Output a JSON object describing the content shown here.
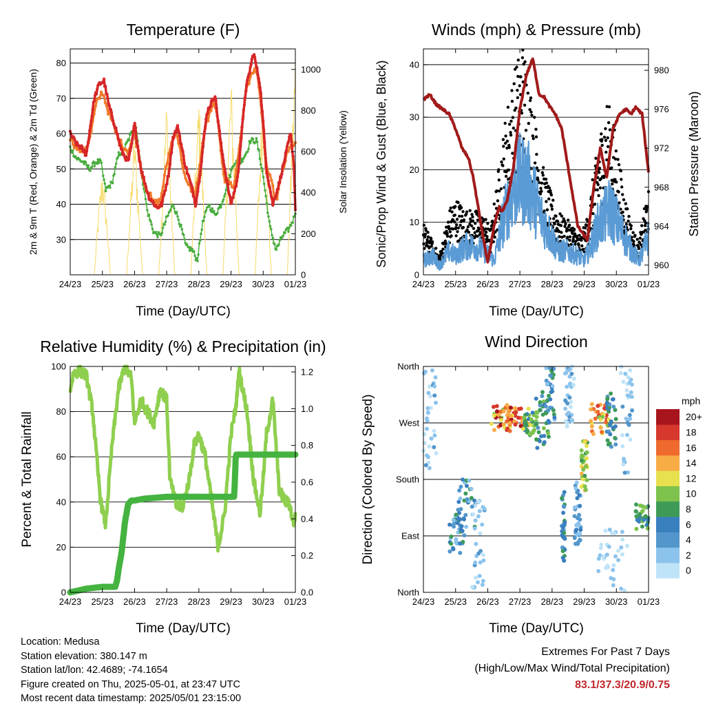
{
  "x_ticks": [
    "24/23",
    "25/23",
    "26/23",
    "27/23",
    "28/23",
    "29/23",
    "30/23",
    "01/23"
  ],
  "xlabel": "Time (Day/UTC)",
  "colors": {
    "temp2m": "#d62728",
    "temp9m": "#f07a2a",
    "dew": "#4aad3f",
    "solar": "#f6dd72",
    "wind": "#5b9bd5",
    "gust": "#000000",
    "pressure": "#a11a1a",
    "rh": "#8fcf4f",
    "rain": "#44b340",
    "extremes": "#c1272d"
  },
  "panels": {
    "temperature": {
      "title": "Temperature (F)",
      "ylabel_left": "2m & 9m T (Red, Orange) & 2m Td (Green)",
      "ylabel_right": "Solar Insolation (Yellow)",
      "left_ticks": [
        "30",
        "40",
        "50",
        "60",
        "70",
        "80"
      ],
      "right_ticks": [
        "0",
        "200",
        "400",
        "600",
        "800",
        "1000"
      ]
    },
    "winds": {
      "title": "Winds (mph) & Pressure (mb)",
      "ylabel_left": "Sonic/Prop Wind & Gust (Blue, Black)",
      "ylabel_right": "Station Pressure (Maroon)",
      "left_ticks": [
        "0",
        "10",
        "20",
        "30",
        "40"
      ],
      "right_ticks": [
        "960",
        "964",
        "968",
        "972",
        "976",
        "980"
      ]
    },
    "humidity": {
      "title": "Relative Humidity (%) & Precipitation (in)",
      "ylabel_left": "Percent & Total Rainfall",
      "left_ticks": [
        "0",
        "20",
        "40",
        "60",
        "80",
        "100"
      ],
      "right_ticks": [
        "0.0",
        "0.2",
        "0.4",
        "0.6",
        "0.8",
        "1.0",
        "1.2"
      ]
    },
    "direction": {
      "title": "Wind Direction",
      "ylabel": "Direction (Colored By Speed)",
      "dir_ticks": [
        "North",
        "East",
        "South",
        "West",
        "North"
      ],
      "legend_title": "mph",
      "legend_labels": [
        "0",
        "2",
        "4",
        "6",
        "8",
        "10",
        "12",
        "14",
        "16",
        "18",
        "20+"
      ],
      "legend_colors": [
        "#bfe3f7",
        "#8cc3ec",
        "#5296cb",
        "#3a7fbe",
        "#3e9b57",
        "#7dc24c",
        "#e7e04f",
        "#f8ac45",
        "#ee6a2d",
        "#d6382e",
        "#a8151d"
      ]
    }
  },
  "chart_data": [
    {
      "type": "line",
      "id": "temperature",
      "title": "Temperature (F)",
      "x_unit": "days since 24/23 UTC",
      "xlim": [
        0,
        7
      ],
      "ylim": [
        20,
        84
      ],
      "y2lim": [
        0,
        1100
      ],
      "series": [
        {
          "name": "2m T",
          "color": "#d62728",
          "x": [
            0.0,
            0.2,
            0.35,
            0.5,
            0.75,
            0.9,
            1.05,
            1.2,
            1.4,
            1.6,
            1.8,
            1.9,
            2.0,
            2.2,
            2.45,
            2.7,
            2.85,
            3.05,
            3.2,
            3.35,
            3.55,
            3.8,
            3.9,
            4.0,
            4.25,
            4.5,
            4.7,
            4.9,
            5.0,
            5.2,
            5.45,
            5.7,
            5.9,
            6.0,
            6.1,
            6.3,
            6.5,
            6.7,
            6.85,
            6.95,
            7.0
          ],
          "y": [
            60,
            57,
            56,
            54,
            70,
            74,
            75,
            68,
            62,
            55,
            52,
            56,
            63,
            50,
            42,
            39,
            40,
            48,
            59,
            62,
            52,
            44,
            40,
            46,
            66,
            71,
            56,
            45,
            40,
            47,
            72,
            83,
            74,
            63,
            50,
            40,
            46,
            54,
            60,
            52,
            39
          ]
        },
        {
          "name": "9m T",
          "color": "#f07a2a",
          "x": [
            0.0,
            0.2,
            0.4,
            0.6,
            0.8,
            1.0,
            1.2,
            1.5,
            1.8,
            2.0,
            2.3,
            2.6,
            2.8,
            3.1,
            3.3,
            3.6,
            3.9,
            4.2,
            4.5,
            4.8,
            5.1,
            5.5,
            5.8,
            6.1,
            6.4,
            6.7,
            6.9
          ],
          "y": [
            59,
            56,
            55,
            58,
            68,
            72,
            66,
            58,
            55,
            60,
            46,
            40,
            41,
            56,
            61,
            46,
            43,
            62,
            69,
            47,
            45,
            74,
            79,
            51,
            41,
            53,
            57
          ]
        },
        {
          "name": "2m Td",
          "color": "#4aad3f",
          "x": [
            0.0,
            0.2,
            0.4,
            0.6,
            0.8,
            0.95,
            1.1,
            1.3,
            1.5,
            1.7,
            1.9,
            2.05,
            2.2,
            2.4,
            2.6,
            2.8,
            3.0,
            3.2,
            3.4,
            3.6,
            3.8,
            3.95,
            4.1,
            4.3,
            4.5,
            4.7,
            4.9,
            5.1,
            5.3,
            5.5,
            5.6,
            5.8,
            6.0,
            6.2,
            6.4,
            6.6,
            6.8,
            6.95,
            7.0
          ],
          "y": [
            56,
            53,
            52,
            50,
            52,
            52,
            44,
            46,
            54,
            56,
            60,
            62,
            50,
            38,
            32,
            31,
            36,
            40,
            35,
            28,
            27,
            24,
            34,
            40,
            37,
            40,
            46,
            52,
            52,
            55,
            58,
            58,
            48,
            34,
            27,
            31,
            33,
            36,
            38
          ]
        },
        {
          "name": "Solar Insolation",
          "axis": "right",
          "color": "#f6dd72",
          "x": [
            0.0,
            0.75,
            0.87,
            1.0,
            1.13,
            1.25,
            1.75,
            1.87,
            2.0,
            2.13,
            2.25,
            2.75,
            2.87,
            3.0,
            3.13,
            3.25,
            3.75,
            3.87,
            4.0,
            4.13,
            4.25,
            4.75,
            4.87,
            5.0,
            5.13,
            5.25,
            5.75,
            5.87,
            6.0,
            6.13,
            6.25,
            6.75,
            6.87,
            7.0
          ],
          "y": [
            0,
            0,
            300,
            520,
            300,
            0,
            0,
            350,
            700,
            350,
            0,
            0,
            420,
            860,
            420,
            0,
            0,
            430,
            870,
            430,
            0,
            0,
            470,
            950,
            470,
            0,
            0,
            470,
            940,
            470,
            0,
            0,
            560,
            1100
          ]
        }
      ]
    },
    {
      "type": "line",
      "id": "winds",
      "title": "Winds (mph) & Pressure (mb)",
      "x_unit": "days since 24/23 UTC",
      "xlim": [
        0,
        7
      ],
      "ylim": [
        0,
        43
      ],
      "y2lim": [
        959,
        982.2
      ],
      "series": [
        {
          "name": "Sonic/Prop Wind",
          "color": "#5b9bd5",
          "x": [
            0.0,
            0.3,
            0.5,
            0.8,
            1.0,
            1.3,
            1.6,
            1.9,
            2.2,
            2.5,
            2.8,
            3.0,
            3.2,
            3.4,
            3.6,
            3.9,
            4.2,
            4.5,
            4.8,
            5.0,
            5.2,
            5.4,
            5.6,
            5.8,
            6.1,
            6.4,
            6.7,
            6.9,
            7.0
          ],
          "y": [
            3,
            4,
            2,
            5,
            4,
            6,
            6,
            5,
            3,
            12,
            18,
            20,
            20,
            17,
            13,
            9,
            5,
            5,
            4,
            3,
            6,
            10,
            12,
            14,
            10,
            6,
            3,
            6,
            8
          ]
        },
        {
          "name": "Gust",
          "color": "#000000",
          "x": [
            0.0,
            0.2,
            0.5,
            0.8,
            1.0,
            1.3,
            1.6,
            1.9,
            2.1,
            2.3,
            2.6,
            2.9,
            3.1,
            3.3,
            3.5,
            3.7,
            4.0,
            4.3,
            4.6,
            4.9,
            5.1,
            5.3,
            5.5,
            5.7,
            5.9,
            6.2,
            6.5,
            6.7,
            6.9,
            7.0
          ],
          "y": [
            8,
            6,
            3,
            10,
            12,
            10,
            10,
            9,
            7,
            15,
            26,
            33,
            36,
            30,
            23,
            17,
            12,
            9,
            8,
            6,
            9,
            16,
            22,
            27,
            24,
            14,
            7,
            5,
            11,
            14
          ]
        },
        {
          "name": "Station Pressure",
          "axis": "right",
          "color": "#a11a1a",
          "x": [
            0.0,
            0.2,
            0.4,
            0.6,
            0.8,
            1.0,
            1.2,
            1.4,
            1.55,
            1.7,
            1.9,
            2.0,
            2.2,
            2.35,
            2.45,
            2.6,
            2.8,
            3.0,
            3.2,
            3.4,
            3.6,
            3.75,
            3.9,
            4.1,
            4.3,
            4.5,
            4.65,
            4.8,
            5.0,
            5.1,
            5.3,
            5.5,
            5.7,
            5.9,
            6.1,
            6.3,
            6.45,
            6.6,
            6.8,
            7.0
          ],
          "y": [
            977,
            977.5,
            976.5,
            976,
            975.5,
            974,
            972,
            971,
            969,
            966,
            962,
            960.3,
            964,
            966,
            965.5,
            966.5,
            970,
            976,
            979.5,
            981.2,
            977.5,
            977.3,
            976.4,
            975.5,
            974,
            970,
            967,
            964,
            963,
            962.6,
            968,
            972,
            969,
            974,
            975.5,
            976,
            975.5,
            976.2,
            975.5,
            969.5
          ]
        }
      ]
    },
    {
      "type": "line",
      "id": "humidity",
      "title": "Relative Humidity (%) & Precipitation (in)",
      "x_unit": "days since 24/23 UTC",
      "xlim": [
        0,
        7
      ],
      "ylim": [
        0,
        100
      ],
      "y2lim": [
        0,
        1.23
      ],
      "series": [
        {
          "name": "Relative Humidity",
          "color": "#8fcf4f",
          "x": [
            0.0,
            0.1,
            0.3,
            0.5,
            0.7,
            0.85,
            0.95,
            1.1,
            1.3,
            1.5,
            1.7,
            1.9,
            2.0,
            2.2,
            2.4,
            2.6,
            2.8,
            3.0,
            3.1,
            3.3,
            3.5,
            3.7,
            3.85,
            4.0,
            4.2,
            4.4,
            4.6,
            4.8,
            5.0,
            5.15,
            5.25,
            5.5,
            5.7,
            5.9,
            6.0,
            6.1,
            6.3,
            6.5,
            6.7,
            6.8,
            6.95,
            7.0
          ],
          "y": [
            90,
            97,
            98,
            96,
            80,
            55,
            40,
            30,
            65,
            90,
            100,
            95,
            75,
            85,
            80,
            75,
            90,
            85,
            50,
            38,
            38,
            50,
            65,
            70,
            60,
            40,
            20,
            35,
            70,
            82,
            98,
            80,
            50,
            35,
            50,
            70,
            85,
            45,
            40,
            40,
            30,
            35
          ]
        },
        {
          "name": "Total Precipitation",
          "axis": "right",
          "color": "#44b340",
          "x": [
            0.0,
            0.5,
            1.0,
            1.4,
            1.45,
            1.5,
            1.6,
            1.7,
            1.8,
            1.9,
            2.0,
            2.3,
            3.0,
            4.0,
            5.0,
            5.1,
            5.15,
            5.3,
            6.0,
            7.0
          ],
          "y": [
            0.0,
            0.02,
            0.03,
            0.03,
            0.06,
            0.12,
            0.22,
            0.38,
            0.48,
            0.5,
            0.5,
            0.51,
            0.52,
            0.52,
            0.52,
            0.52,
            0.75,
            0.75,
            0.75,
            0.75
          ]
        }
      ]
    },
    {
      "type": "scatter",
      "id": "direction",
      "title": "Wind Direction",
      "x_unit": "days since 24/23 UTC",
      "xlim": [
        0,
        7
      ],
      "ylim": [
        0,
        360
      ],
      "legend": "right",
      "colorscale": {
        "label": "mph",
        "levels": [
          0,
          2,
          4,
          6,
          8,
          10,
          12,
          14,
          16,
          18,
          20
        ]
      },
      "clusters": [
        {
          "x": [
            0.0,
            0.4
          ],
          "dir": [
            190,
            360
          ],
          "speed": [
            0,
            4
          ]
        },
        {
          "x": [
            0.8,
            1.3
          ],
          "dir": [
            60,
            120
          ],
          "speed": [
            2,
            8
          ]
        },
        {
          "x": [
            1.0,
            1.6
          ],
          "dir": [
            100,
            180
          ],
          "speed": [
            2,
            8
          ]
        },
        {
          "x": [
            1.5,
            1.9
          ],
          "dir": [
            0,
            150
          ],
          "speed": [
            0,
            4
          ]
        },
        {
          "x": [
            2.1,
            2.7
          ],
          "dir": [
            255,
            300
          ],
          "speed": [
            10,
            20
          ]
        },
        {
          "x": [
            2.6,
            3.3
          ],
          "dir": [
            265,
            295
          ],
          "speed": [
            12,
            20
          ]
        },
        {
          "x": [
            3.1,
            3.6
          ],
          "dir": [
            250,
            290
          ],
          "speed": [
            6,
            12
          ]
        },
        {
          "x": [
            3.5,
            3.9
          ],
          "dir": [
            230,
            320
          ],
          "speed": [
            4,
            10
          ]
        },
        {
          "x": [
            3.8,
            4.1
          ],
          "dir": [
            270,
            360
          ],
          "speed": [
            2,
            8
          ]
        },
        {
          "x": [
            4.4,
            4.7
          ],
          "dir": [
            260,
            360
          ],
          "speed": [
            0,
            4
          ]
        },
        {
          "x": [
            4.3,
            4.4
          ],
          "dir": [
            50,
            160
          ],
          "speed": [
            4,
            8
          ]
        },
        {
          "x": [
            4.7,
            4.9
          ],
          "dir": [
            70,
            180
          ],
          "speed": [
            2,
            6
          ]
        },
        {
          "x": [
            4.9,
            5.1
          ],
          "dir": [
            160,
            250
          ],
          "speed": [
            8,
            14
          ]
        },
        {
          "x": [
            5.2,
            5.8
          ],
          "dir": [
            250,
            300
          ],
          "speed": [
            10,
            18
          ]
        },
        {
          "x": [
            5.7,
            6.0
          ],
          "dir": [
            230,
            320
          ],
          "speed": [
            4,
            8
          ]
        },
        {
          "x": [
            6.1,
            6.5
          ],
          "dir": [
            190,
            360
          ],
          "speed": [
            0,
            4
          ]
        },
        {
          "x": [
            6.6,
            7.0
          ],
          "dir": [
            100,
            140
          ],
          "speed": [
            6,
            10
          ]
        },
        {
          "x": [
            5.4,
            6.4
          ],
          "dir": [
            0,
            100
          ],
          "speed": [
            0,
            2
          ]
        }
      ]
    }
  ],
  "info": {
    "location": "Location: Medusa",
    "elevation": "Station elevation: 380.147 m",
    "latlon": "Station lat/lon: 42.4689; -74.1654",
    "created": "Figure created on Thu, 2025-05-01, at 23:47 UTC",
    "recent": "Most recent data timestamp: 2025/05/01 23:15:00"
  },
  "extremes": {
    "title": "Extremes For Past 7 Days",
    "subtitle": "(High/Low/Max Wind/Total Precipitation)",
    "values": "83.1/37.3/20.9/0.75"
  }
}
